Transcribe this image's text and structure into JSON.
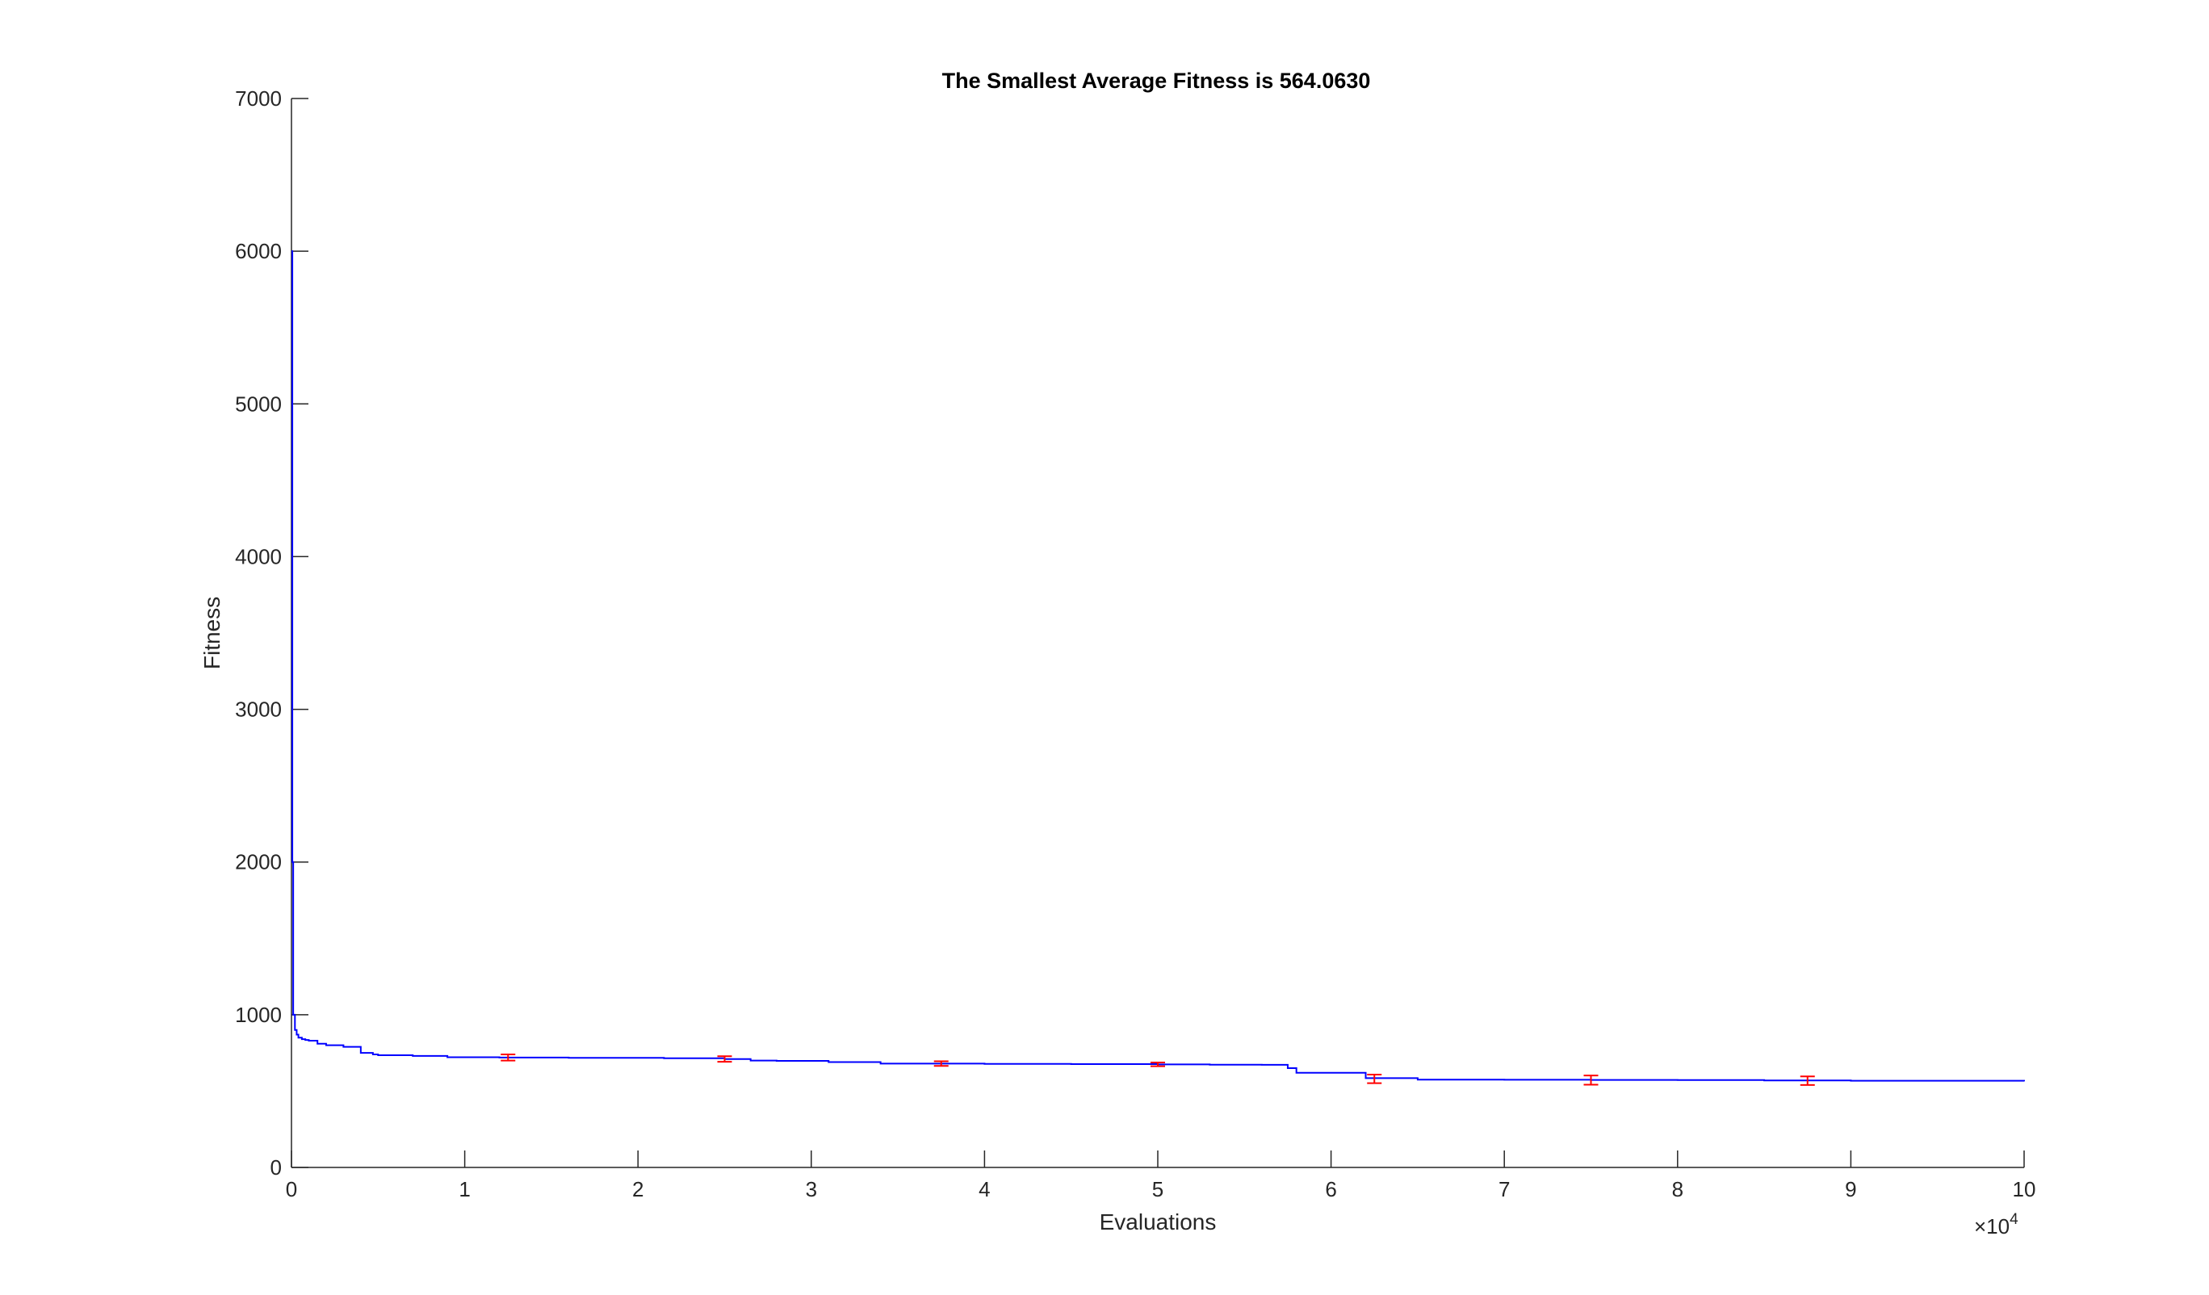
{
  "chart_data": {
    "type": "line",
    "title": "The Smallest Average Fitness is 564.0630",
    "xlabel": "Evaluations",
    "ylabel": "Fitness",
    "x_exponent_label": "×10",
    "x_exponent_power": "4",
    "xlim": [
      0,
      100000
    ],
    "ylim": [
      0,
      7000
    ],
    "x_ticks": [
      0,
      10000,
      20000,
      30000,
      40000,
      50000,
      60000,
      70000,
      80000,
      90000,
      100000
    ],
    "x_tick_labels": [
      "0",
      "1",
      "2",
      "3",
      "4",
      "5",
      "6",
      "7",
      "8",
      "9",
      "10"
    ],
    "y_ticks": [
      0,
      1000,
      2000,
      3000,
      4000,
      5000,
      6000,
      7000
    ],
    "y_tick_labels": [
      "0",
      "1000",
      "2000",
      "3000",
      "4000",
      "5000",
      "6000",
      "7000"
    ],
    "grid": false,
    "series": [
      {
        "style": "stairs",
        "color": "#0000ff",
        "x": [
          0,
          50,
          100,
          200,
          300,
          400,
          600,
          800,
          1000,
          1500,
          2000,
          3000,
          4000,
          4700,
          5000,
          7000,
          9000,
          12000,
          16000,
          21500,
          25000,
          26500,
          28000,
          31000,
          34000,
          40000,
          45000,
          50000,
          53000,
          56000,
          57500,
          58000,
          62000,
          65000,
          70000,
          75000,
          80000,
          85000,
          90000,
          100000
        ],
        "y": [
          6000,
          2000,
          1000,
          900,
          870,
          850,
          840,
          835,
          830,
          810,
          800,
          790,
          750,
          740,
          735,
          730,
          722,
          720,
          718,
          715,
          710,
          700,
          698,
          690,
          680,
          678,
          677,
          675,
          673,
          672,
          650,
          620,
          585,
          575,
          574,
          573,
          572,
          570,
          568,
          564
        ]
      }
    ],
    "error_bars": {
      "color": "#ff0000",
      "x": [
        12500,
        25000,
        37500,
        50000,
        62500,
        75000,
        87500
      ],
      "y": [
        720,
        710,
        680,
        675,
        580,
        572,
        568
      ],
      "err": [
        20,
        18,
        15,
        12,
        28,
        30,
        28
      ]
    }
  }
}
